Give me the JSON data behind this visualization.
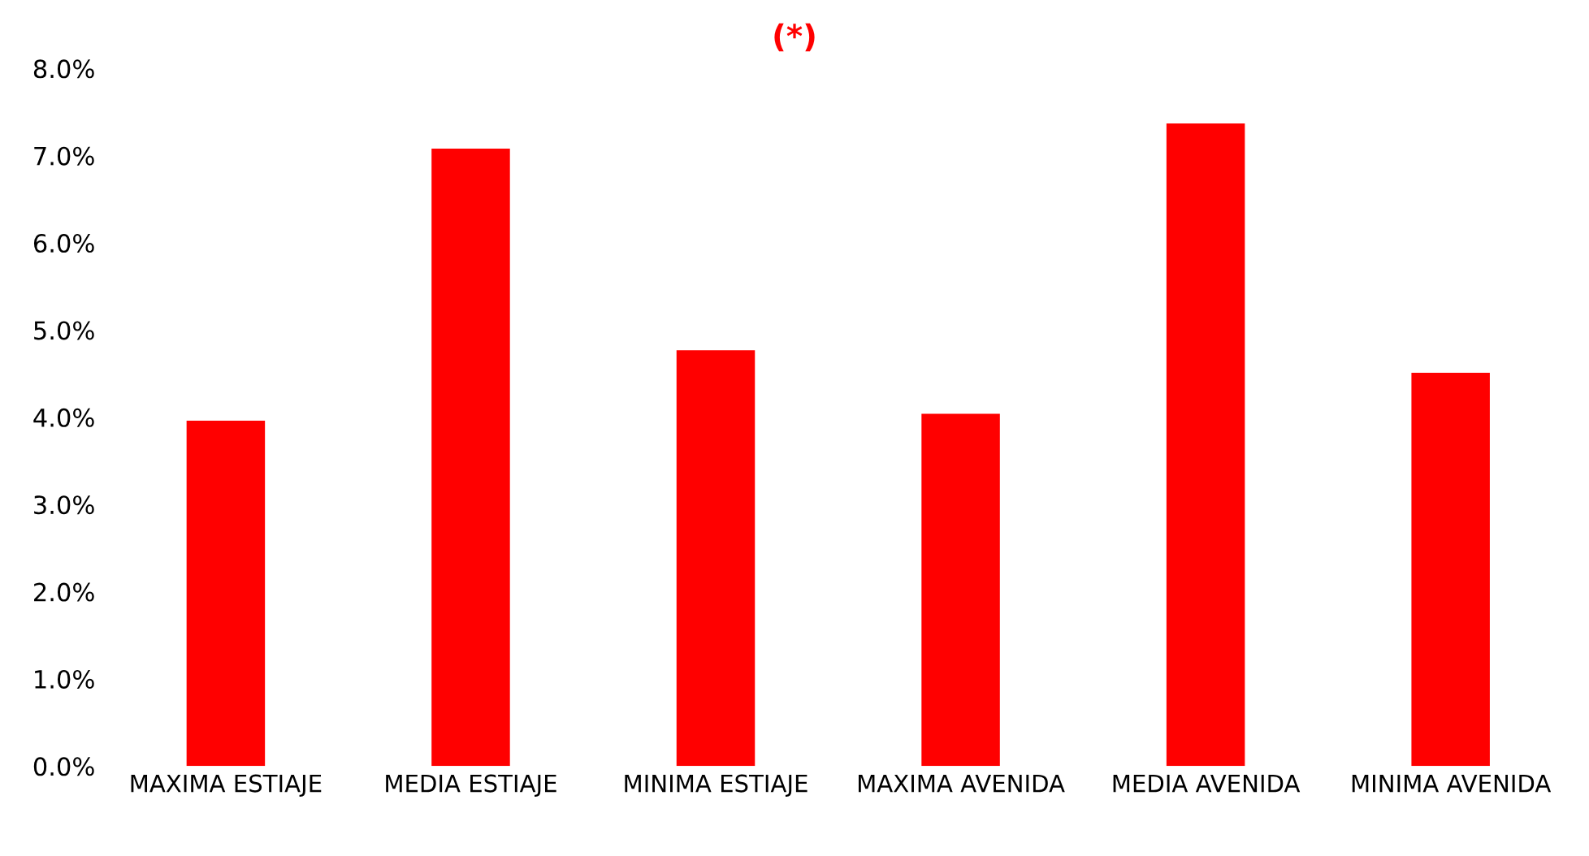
{
  "chart_data": {
    "type": "bar",
    "subtitle": "(*)",
    "categories": [
      "MAXIMA ESTIAJE",
      "MEDIA ESTIAJE",
      "MINIMA ESTIAJE",
      "MAXIMA AVENIDA",
      "MEDIA AVENIDA",
      "MINIMA AVENIDA"
    ],
    "values": [
      3.96,
      7.08,
      4.77,
      4.04,
      7.37,
      4.51
    ],
    "color": "#ff0000",
    "ylim": [
      0,
      8
    ],
    "yticks": [
      {
        "value": 0,
        "label": "0.0%"
      },
      {
        "value": 1,
        "label": "1.0%"
      },
      {
        "value": 2,
        "label": "2.0%"
      },
      {
        "value": 3,
        "label": "3.0%"
      },
      {
        "value": 4,
        "label": "4.0%"
      },
      {
        "value": 5,
        "label": "5.0%"
      },
      {
        "value": 6,
        "label": "6.0%"
      },
      {
        "value": 7,
        "label": "7.0%"
      },
      {
        "value": 8,
        "label": "8.0%"
      }
    ],
    "grid": false,
    "legend": false
  }
}
